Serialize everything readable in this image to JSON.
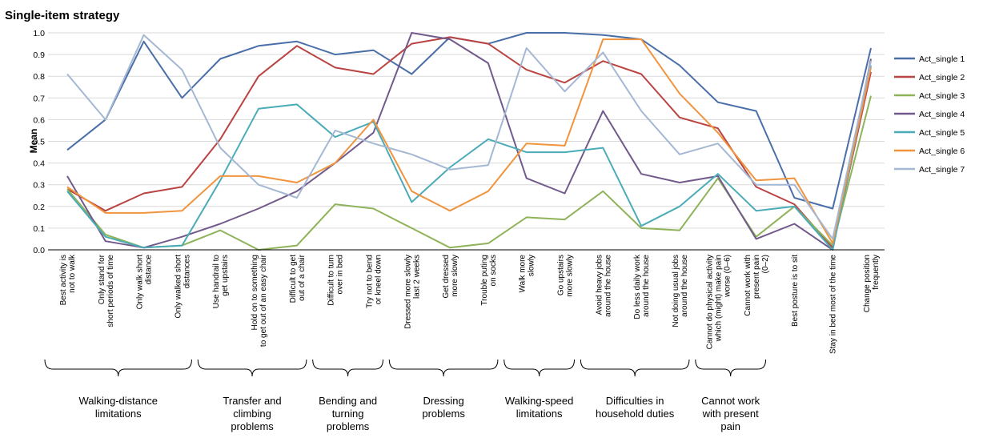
{
  "chart_data": {
    "type": "line",
    "title": "Single-item strategy",
    "ylabel": "Mean",
    "xlabel": "",
    "ylim": [
      0,
      1.0
    ],
    "yticks": [
      "0.0",
      "0.1",
      "0.2",
      "0.3",
      "0.4",
      "0.5",
      "0.6",
      "0.7",
      "0.8",
      "0.9",
      "1.0"
    ],
    "grid": "horizontal",
    "legend_position": "right",
    "categories": [
      [
        "Best activity is",
        "not to walk"
      ],
      [
        "Only stand for",
        "short periods of time"
      ],
      [
        "Only walk short",
        "distance"
      ],
      [
        "Only walked short",
        "distances"
      ],
      [
        "Use handrail to",
        "get upstairs"
      ],
      [
        "Hold on to something",
        "to get out of an easy chair"
      ],
      [
        "Difficult to get",
        "out of a chair"
      ],
      [
        "Difficult to turn",
        "over in bed"
      ],
      [
        "Try not to bend",
        "or kneel down"
      ],
      [
        "Dressed more slowly",
        "last 2 weeks"
      ],
      [
        "Get dressed",
        "more slowly"
      ],
      [
        "Trouble puting",
        "on socks"
      ],
      [
        "Walk more",
        "slowly"
      ],
      [
        "Go upstairs",
        "more slowly"
      ],
      [
        "Avoid heavy jobs",
        "around the house"
      ],
      [
        "Do less daily work",
        "around the house"
      ],
      [
        "Not doing usual jobs",
        "around the house"
      ],
      [
        "Cannot do physical activity",
        "which (might) make pain",
        "worse (0–6)"
      ],
      [
        "Cannot work with",
        "present pain",
        "(0–2)"
      ],
      [
        "Best posture is  to sit"
      ],
      [
        "Stay in bed most of the time"
      ],
      [
        "Change position",
        "frequently"
      ]
    ],
    "groups": [
      {
        "lines": [
          "Walking-distance",
          "limitations"
        ],
        "from": 0,
        "to": 3
      },
      {
        "lines": [
          "Transfer and",
          "climbing",
          "problems"
        ],
        "from": 4,
        "to": 6
      },
      {
        "lines": [
          "Bending and",
          "turning",
          "problems"
        ],
        "from": 7,
        "to": 8
      },
      {
        "lines": [
          "Dressing",
          "problems"
        ],
        "from": 9,
        "to": 11
      },
      {
        "lines": [
          "Walking-speed",
          "limitations"
        ],
        "from": 12,
        "to": 13
      },
      {
        "lines": [
          "Difficulties in",
          "household duties"
        ],
        "from": 14,
        "to": 16
      },
      {
        "lines": [
          "Cannot work",
          "with present",
          "pain"
        ],
        "from": 17,
        "to": 18
      }
    ],
    "series": [
      {
        "name": "Act_single 1",
        "color": "#4a6fa8",
        "values": [
          0.46,
          0.6,
          0.96,
          0.7,
          0.88,
          0.94,
          0.96,
          0.9,
          0.92,
          0.81,
          0.98,
          0.95,
          1.0,
          1.0,
          0.99,
          0.97,
          0.85,
          0.68,
          0.64,
          0.24,
          0.19,
          0.93
        ]
      },
      {
        "name": "Act_single 2",
        "color": "#b94442",
        "values": [
          0.28,
          0.18,
          0.26,
          0.29,
          0.51,
          0.8,
          0.94,
          0.84,
          0.81,
          0.95,
          0.98,
          0.95,
          0.83,
          0.77,
          0.87,
          0.81,
          0.61,
          0.56,
          0.29,
          0.21,
          0.01,
          0.82
        ]
      },
      {
        "name": "Act_single 3",
        "color": "#8fb35a",
        "values": [
          0.28,
          0.07,
          0.01,
          0.02,
          0.09,
          0.0,
          0.02,
          0.21,
          0.19,
          0.1,
          0.01,
          0.03,
          0.15,
          0.14,
          0.27,
          0.1,
          0.09,
          0.33,
          0.06,
          0.2,
          0.02,
          0.71
        ]
      },
      {
        "name": "Act_single 4",
        "color": "#735a8c",
        "values": [
          0.34,
          0.04,
          0.01,
          0.06,
          0.12,
          0.19,
          0.27,
          0.4,
          0.54,
          1.0,
          0.97,
          0.86,
          0.33,
          0.26,
          0.64,
          0.35,
          0.31,
          0.34,
          0.05,
          0.12,
          0.0,
          0.88
        ]
      },
      {
        "name": "Act_single 5",
        "color": "#4bacb8",
        "values": [
          0.27,
          0.06,
          0.01,
          0.02,
          0.32,
          0.65,
          0.67,
          0.52,
          0.59,
          0.22,
          0.38,
          0.51,
          0.45,
          0.45,
          0.47,
          0.11,
          0.2,
          0.35,
          0.18,
          0.2,
          0.0,
          0.85
        ]
      },
      {
        "name": "Act_single 6",
        "color": "#f0943e",
        "values": [
          0.29,
          0.17,
          0.17,
          0.18,
          0.34,
          0.34,
          0.31,
          0.4,
          0.6,
          0.27,
          0.18,
          0.27,
          0.49,
          0.48,
          0.97,
          0.97,
          0.72,
          0.54,
          0.32,
          0.33,
          0.03,
          0.84
        ]
      },
      {
        "name": "Act_single 7",
        "color": "#a4b8d4",
        "values": [
          0.81,
          0.6,
          0.99,
          0.83,
          0.47,
          0.3,
          0.24,
          0.55,
          0.49,
          0.44,
          0.37,
          0.39,
          0.93,
          0.73,
          0.91,
          0.64,
          0.44,
          0.49,
          0.3,
          0.3,
          0.05,
          0.87
        ]
      }
    ]
  }
}
